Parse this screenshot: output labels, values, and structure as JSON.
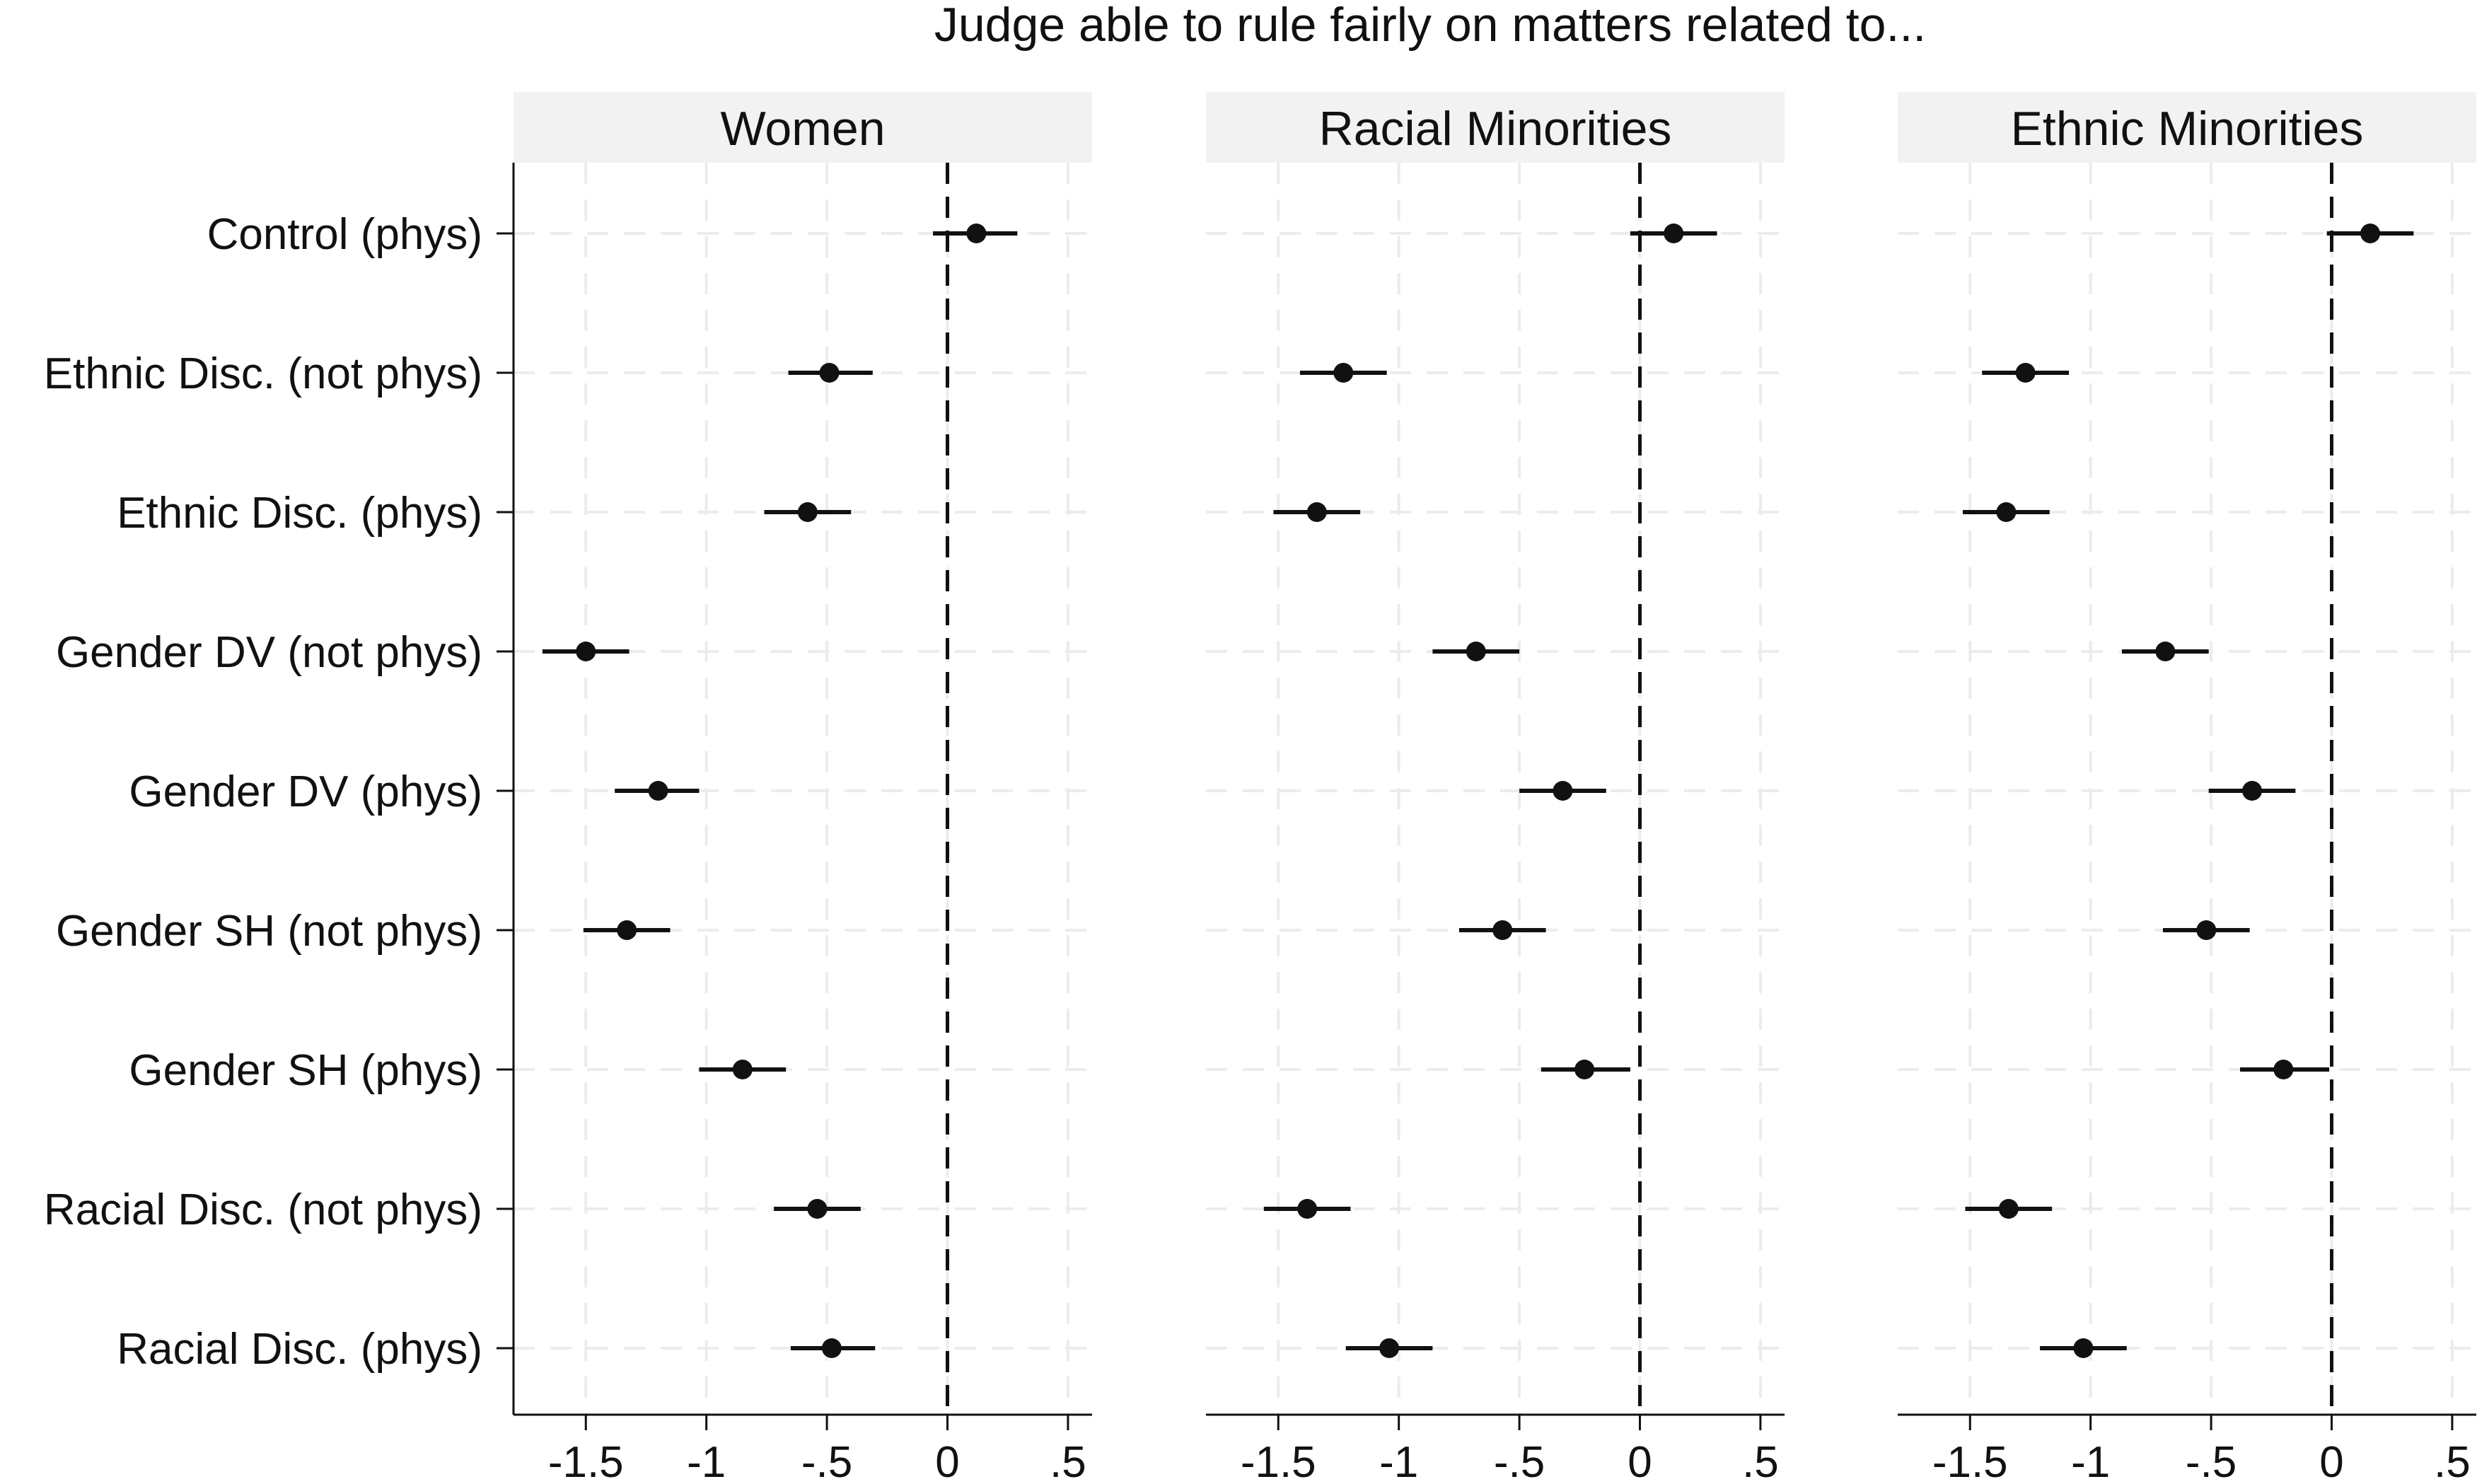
{
  "chart_data": {
    "type": "scatter",
    "subtype": "coefficient-plot-with-confidence-intervals",
    "title": "Judge able to rule fairly on matters related to...",
    "categories": [
      "Control (phys)",
      "Ethnic Disc. (not phys)",
      "Ethnic Disc. (phys)",
      "Gender DV (not phys)",
      "Gender DV (phys)",
      "Gender SH (not phys)",
      "Gender SH (phys)",
      "Racial Disc. (not phys)",
      "Racial Disc. (phys)"
    ],
    "xlim": [
      -1.8,
      0.6
    ],
    "xticks": [
      -1.5,
      -1,
      -0.5,
      0,
      0.5
    ],
    "xtick_labels": [
      "-1.5",
      "-1",
      "-.5",
      "0",
      ".5"
    ],
    "reference_line_x": 0,
    "grid": true,
    "panels": [
      {
        "name": "Women",
        "points": [
          {
            "estimate": 0.12,
            "lo": -0.06,
            "hi": 0.29
          },
          {
            "estimate": -0.49,
            "lo": -0.66,
            "hi": -0.31
          },
          {
            "estimate": -0.58,
            "lo": -0.76,
            "hi": -0.4
          },
          {
            "estimate": -1.5,
            "lo": -1.68,
            "hi": -1.32
          },
          {
            "estimate": -1.2,
            "lo": -1.38,
            "hi": -1.03
          },
          {
            "estimate": -1.33,
            "lo": -1.51,
            "hi": -1.15
          },
          {
            "estimate": -0.85,
            "lo": -1.03,
            "hi": -0.67
          },
          {
            "estimate": -0.54,
            "lo": -0.72,
            "hi": -0.36
          },
          {
            "estimate": -0.48,
            "lo": -0.65,
            "hi": -0.3
          }
        ]
      },
      {
        "name": "Racial Minorities",
        "points": [
          {
            "estimate": 0.14,
            "lo": -0.04,
            "hi": 0.32
          },
          {
            "estimate": -1.23,
            "lo": -1.41,
            "hi": -1.05
          },
          {
            "estimate": -1.34,
            "lo": -1.52,
            "hi": -1.16
          },
          {
            "estimate": -0.68,
            "lo": -0.86,
            "hi": -0.5
          },
          {
            "estimate": -0.32,
            "lo": -0.5,
            "hi": -0.14
          },
          {
            "estimate": -0.57,
            "lo": -0.75,
            "hi": -0.39
          },
          {
            "estimate": -0.23,
            "lo": -0.41,
            "hi": -0.04
          },
          {
            "estimate": -1.38,
            "lo": -1.56,
            "hi": -1.2
          },
          {
            "estimate": -1.04,
            "lo": -1.22,
            "hi": -0.86
          }
        ]
      },
      {
        "name": "Ethnic Minorities",
        "points": [
          {
            "estimate": 0.16,
            "lo": -0.02,
            "hi": 0.34
          },
          {
            "estimate": -1.27,
            "lo": -1.45,
            "hi": -1.09
          },
          {
            "estimate": -1.35,
            "lo": -1.53,
            "hi": -1.17
          },
          {
            "estimate": -0.69,
            "lo": -0.87,
            "hi": -0.51
          },
          {
            "estimate": -0.33,
            "lo": -0.51,
            "hi": -0.15
          },
          {
            "estimate": -0.52,
            "lo": -0.7,
            "hi": -0.34
          },
          {
            "estimate": -0.2,
            "lo": -0.38,
            "hi": -0.01
          },
          {
            "estimate": -1.34,
            "lo": -1.52,
            "hi": -1.16
          },
          {
            "estimate": -1.03,
            "lo": -1.21,
            "hi": -0.85
          }
        ]
      }
    ]
  }
}
